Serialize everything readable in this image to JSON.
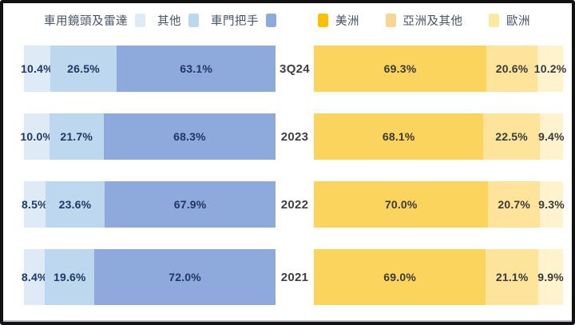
{
  "colors": {
    "frame": "#121212",
    "left_segments": [
      "#DEEBF7",
      "#BDD7EE",
      "#8EA9DB"
    ],
    "right_segments": [
      "#FBD45E",
      "#FDE49A",
      "#FEF3CC"
    ],
    "left_value_text": "#1F3864",
    "right_value_text": "#3A3A3A",
    "year_text": "#3F3F3F",
    "legend_text": "#44546A"
  },
  "legend_left": {
    "items": [
      {
        "label": "車用鏡頭及雷達",
        "color": "#DEEBF7"
      },
      {
        "label": "其他",
        "color": "#BDD7EE"
      },
      {
        "label": "車門把手",
        "color": "#8EA9DB"
      }
    ]
  },
  "legend_right": {
    "items": [
      {
        "label": "美洲",
        "color": "#FFC000"
      },
      {
        "label": "亞洲及其他",
        "color": "#F8D68F"
      },
      {
        "label": "歐洲",
        "color": "#FBE8A1"
      }
    ]
  },
  "chart_data": {
    "type": "bar",
    "variant": "horizontal-stacked, dual panel, 100% composition",
    "categories": [
      "3Q24",
      "2023",
      "2022",
      "2021"
    ],
    "unit": "%",
    "legend_position": "top",
    "left_chart": {
      "series": [
        {
          "name": "車用鏡頭及雷達",
          "values": [
            10.4,
            10.0,
            8.5,
            8.4
          ]
        },
        {
          "name": "其他",
          "values": [
            26.5,
            21.7,
            23.6,
            19.6
          ]
        },
        {
          "name": "車門把手",
          "values": [
            63.1,
            68.3,
            67.9,
            72.0
          ]
        }
      ]
    },
    "right_chart": {
      "series": [
        {
          "name": "美洲",
          "values": [
            69.3,
            68.1,
            70.0,
            69.0
          ]
        },
        {
          "name": "亞洲及其他",
          "values": [
            20.6,
            22.5,
            20.7,
            21.1
          ]
        },
        {
          "name": "歐洲",
          "values": [
            10.2,
            9.4,
            9.3,
            9.9
          ]
        }
      ]
    }
  }
}
